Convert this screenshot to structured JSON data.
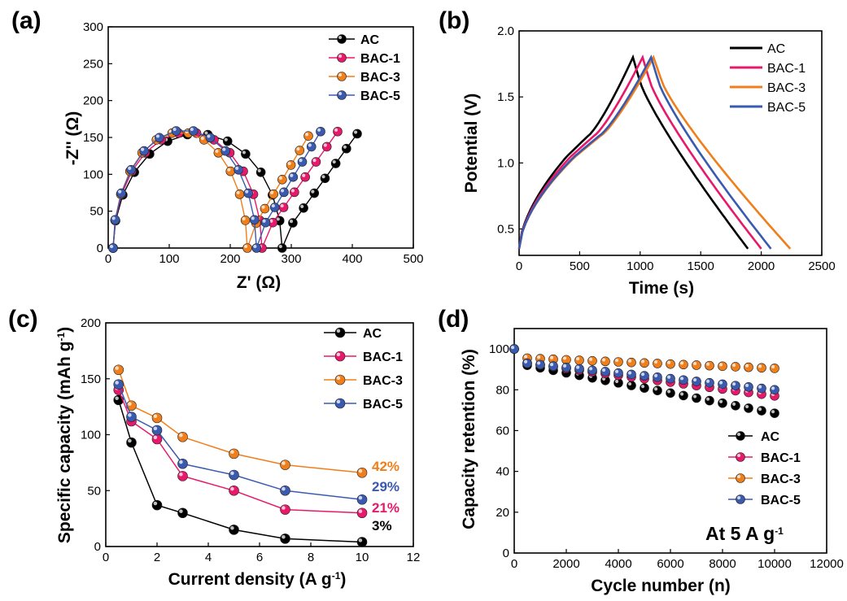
{
  "colors": {
    "AC": "#000000",
    "BAC-1": "#e8186a",
    "BAC-3": "#f07e1a",
    "BAC-5": "#3a5ab0"
  },
  "panels": {
    "a": {
      "label": "(a)",
      "xlabel": "Z' (Ω)",
      "ylabel": "-Z'' (Ω)"
    },
    "b": {
      "label": "(b)",
      "xlabel": "Time (s)",
      "ylabel": "Potential (V)"
    },
    "c": {
      "label": "(c)",
      "xlabel": "Current density (A g-1)",
      "ylabel": "Specific capacity (mAh g-1)"
    },
    "d": {
      "label": "(d)",
      "xlabel": "Cycle number (n)",
      "ylabel": "Capacity retention (%)",
      "condition": "At 5 A g-1"
    }
  },
  "chart_data": [
    {
      "type": "scatter",
      "panel": "a",
      "xlabel": "Z' (Ω)",
      "ylabel": "-Z'' (Ω)",
      "xlim": [
        0,
        500
      ],
      "ylim": [
        0,
        300
      ],
      "xticks": [
        0,
        100,
        200,
        300,
        400,
        500
      ],
      "yticks": [
        0,
        50,
        100,
        150,
        200,
        250,
        300
      ],
      "legend_position": "top-right",
      "series": [
        {
          "name": "AC",
          "Rct_end": 285,
          "peak": 155,
          "tail_end": [
            408,
            155
          ]
        },
        {
          "name": "BAC-1",
          "Rct_end": 252,
          "peak": 157,
          "tail_end": [
            376,
            158
          ]
        },
        {
          "name": "BAC-3",
          "Rct_end": 228,
          "peak": 157,
          "tail_end": [
            328,
            152
          ]
        },
        {
          "name": "BAC-5",
          "Rct_end": 243,
          "peak": 160,
          "tail_end": [
            348,
            158
          ]
        }
      ]
    },
    {
      "type": "line",
      "panel": "b",
      "xlabel": "Time (s)",
      "ylabel": "Potential (V)",
      "xlim": [
        0,
        2500
      ],
      "ylim": [
        0.3,
        2.0
      ],
      "xticks": [
        0,
        500,
        1000,
        1500,
        2000,
        2500
      ],
      "yticks": [
        0.5,
        1.0,
        1.5,
        2.0
      ],
      "legend_position": "top-right",
      "series": [
        {
          "name": "AC",
          "t_charge_end": 940,
          "t_end": 1890,
          "v_max": 1.8,
          "v_min": 0.35
        },
        {
          "name": "BAC-1",
          "t_charge_end": 1020,
          "t_end": 2000,
          "v_max": 1.8,
          "v_min": 0.35
        },
        {
          "name": "BAC-3",
          "t_charge_end": 1110,
          "t_end": 2240,
          "v_max": 1.8,
          "v_min": 0.35
        },
        {
          "name": "BAC-5",
          "t_charge_end": 1090,
          "t_end": 2080,
          "v_max": 1.8,
          "v_min": 0.35
        }
      ]
    },
    {
      "type": "line",
      "panel": "c",
      "xlabel": "Current density (A g-1)",
      "ylabel": "Specific capacity (mAh g-1)",
      "xlim": [
        0,
        12
      ],
      "ylim": [
        0,
        200
      ],
      "xticks": [
        0,
        2,
        4,
        6,
        8,
        10,
        12
      ],
      "yticks": [
        0,
        50,
        100,
        150,
        200
      ],
      "x": [
        0.5,
        1,
        2,
        3,
        5,
        7,
        10
      ],
      "legend_position": "top-right",
      "series": [
        {
          "name": "AC",
          "values": [
            131,
            93,
            37,
            30,
            15,
            7,
            4
          ],
          "retention": "3%"
        },
        {
          "name": "BAC-1",
          "values": [
            140,
            112,
            96,
            63,
            50,
            33,
            30
          ],
          "retention": "21%"
        },
        {
          "name": "BAC-3",
          "values": [
            158,
            126,
            115,
            98,
            83,
            73,
            66
          ],
          "retention": "42%"
        },
        {
          "name": "BAC-5",
          "values": [
            145,
            116,
            104,
            74,
            64,
            50,
            42
          ],
          "retention": "29%"
        }
      ]
    },
    {
      "type": "scatter",
      "panel": "d",
      "xlabel": "Cycle number (n)",
      "ylabel": "Capacity retention (%)",
      "xlim": [
        0,
        12000
      ],
      "ylim": [
        0,
        110
      ],
      "xticks": [
        0,
        2000,
        4000,
        6000,
        8000,
        10000,
        12000
      ],
      "yticks": [
        0,
        20,
        40,
        60,
        80,
        100
      ],
      "annotation": "At 5 A g-1",
      "legend_position": "bottom-right",
      "series": [
        {
          "name": "AC",
          "start": 100,
          "second": 92,
          "end": 68.5
        },
        {
          "name": "BAC-1",
          "start": 100,
          "second": 93,
          "end": 77
        },
        {
          "name": "BAC-3",
          "start": 100,
          "second": 95.5,
          "end": 90.5
        },
        {
          "name": "BAC-5",
          "start": 100,
          "second": 93,
          "end": 80
        }
      ]
    }
  ]
}
